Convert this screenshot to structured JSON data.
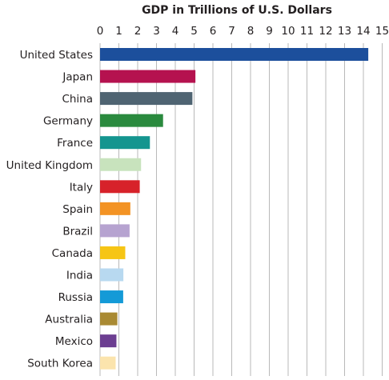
{
  "chart_data": {
    "type": "bar",
    "orientation": "horizontal",
    "title": "GDP in Trillions of U.S. Dollars",
    "xlabel": "",
    "ylabel": "",
    "xlim": [
      0,
      15
    ],
    "xticks": [
      "0",
      "1",
      "2",
      "3",
      "4",
      "5",
      "6",
      "7",
      "8",
      "9",
      "10",
      "11",
      "12",
      "13",
      "14",
      "15"
    ],
    "axis_position": "top",
    "grid": true,
    "legend": "none",
    "categories": [
      "United States",
      "Japan",
      "China",
      "Germany",
      "France",
      "United Kingdom",
      "Italy",
      "Spain",
      "Brazil",
      "Canada",
      "India",
      "Russia",
      "Australia",
      "Mexico",
      "South Korea"
    ],
    "values": [
      14.26,
      5.07,
      4.91,
      3.35,
      2.65,
      2.18,
      2.11,
      1.61,
      1.57,
      1.34,
      1.24,
      1.23,
      0.92,
      0.87,
      0.83
    ],
    "colors": [
      "#1c4f9c",
      "#b5124f",
      "#4f6472",
      "#2a8a3e",
      "#14958f",
      "#c8e3bd",
      "#d7222a",
      "#f39324",
      "#b6a3d0",
      "#f6c515",
      "#b8d9f0",
      "#149ad7",
      "#a98a33",
      "#6c3e91",
      "#fbe4ad"
    ]
  }
}
